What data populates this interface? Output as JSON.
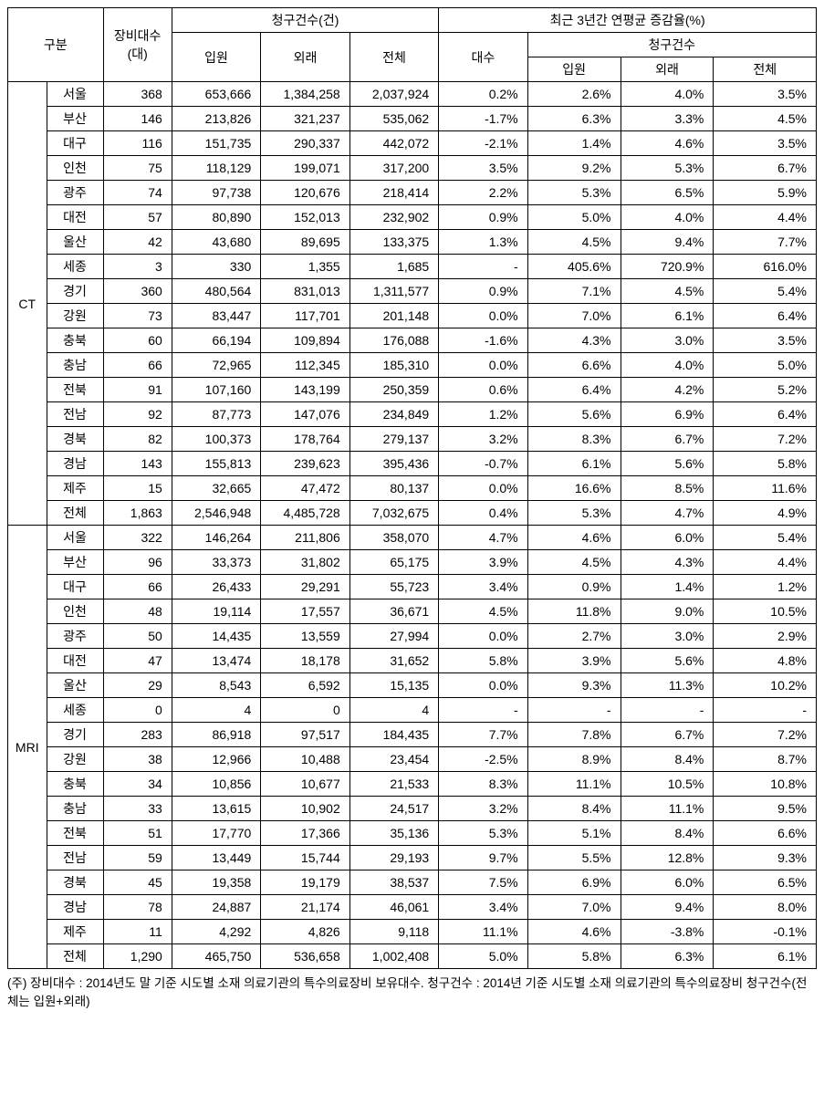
{
  "headers": {
    "gubun": "구분",
    "equip": "장비대수\n(대)",
    "claims": "청구건수(건)",
    "in": "입원",
    "out": "외래",
    "total": "전체",
    "growth": "최근 3년간 연평균 증감율(%)",
    "g_equip": "대수",
    "g_claims": "청구건수"
  },
  "groups": [
    "CT",
    "MRI"
  ],
  "rows": {
    "CT": [
      {
        "region": "서울",
        "equip": "368",
        "in": "653,666",
        "out": "1,384,258",
        "total": "2,037,924",
        "gd": "0.2%",
        "gi": "2.6%",
        "go": "4.0%",
        "gt": "3.5%"
      },
      {
        "region": "부산",
        "equip": "146",
        "in": "213,826",
        "out": "321,237",
        "total": "535,062",
        "gd": "-1.7%",
        "gi": "6.3%",
        "go": "3.3%",
        "gt": "4.5%"
      },
      {
        "region": "대구",
        "equip": "116",
        "in": "151,735",
        "out": "290,337",
        "total": "442,072",
        "gd": "-2.1%",
        "gi": "1.4%",
        "go": "4.6%",
        "gt": "3.5%"
      },
      {
        "region": "인천",
        "equip": "75",
        "in": "118,129",
        "out": "199,071",
        "total": "317,200",
        "gd": "3.5%",
        "gi": "9.2%",
        "go": "5.3%",
        "gt": "6.7%"
      },
      {
        "region": "광주",
        "equip": "74",
        "in": "97,738",
        "out": "120,676",
        "total": "218,414",
        "gd": "2.2%",
        "gi": "5.3%",
        "go": "6.5%",
        "gt": "5.9%"
      },
      {
        "region": "대전",
        "equip": "57",
        "in": "80,890",
        "out": "152,013",
        "total": "232,902",
        "gd": "0.9%",
        "gi": "5.0%",
        "go": "4.0%",
        "gt": "4.4%"
      },
      {
        "region": "울산",
        "equip": "42",
        "in": "43,680",
        "out": "89,695",
        "total": "133,375",
        "gd": "1.3%",
        "gi": "4.5%",
        "go": "9.4%",
        "gt": "7.7%"
      },
      {
        "region": "세종",
        "equip": "3",
        "in": "330",
        "out": "1,355",
        "total": "1,685",
        "gd": "-",
        "gi": "405.6%",
        "go": "720.9%",
        "gt": "616.0%"
      },
      {
        "region": "경기",
        "equip": "360",
        "in": "480,564",
        "out": "831,013",
        "total": "1,311,577",
        "gd": "0.9%",
        "gi": "7.1%",
        "go": "4.5%",
        "gt": "5.4%"
      },
      {
        "region": "강원",
        "equip": "73",
        "in": "83,447",
        "out": "117,701",
        "total": "201,148",
        "gd": "0.0%",
        "gi": "7.0%",
        "go": "6.1%",
        "gt": "6.4%"
      },
      {
        "region": "충북",
        "equip": "60",
        "in": "66,194",
        "out": "109,894",
        "total": "176,088",
        "gd": "-1.6%",
        "gi": "4.3%",
        "go": "3.0%",
        "gt": "3.5%"
      },
      {
        "region": "충남",
        "equip": "66",
        "in": "72,965",
        "out": "112,345",
        "total": "185,310",
        "gd": "0.0%",
        "gi": "6.6%",
        "go": "4.0%",
        "gt": "5.0%"
      },
      {
        "region": "전북",
        "equip": "91",
        "in": "107,160",
        "out": "143,199",
        "total": "250,359",
        "gd": "0.6%",
        "gi": "6.4%",
        "go": "4.2%",
        "gt": "5.2%"
      },
      {
        "region": "전남",
        "equip": "92",
        "in": "87,773",
        "out": "147,076",
        "total": "234,849",
        "gd": "1.2%",
        "gi": "5.6%",
        "go": "6.9%",
        "gt": "6.4%"
      },
      {
        "region": "경북",
        "equip": "82",
        "in": "100,373",
        "out": "178,764",
        "total": "279,137",
        "gd": "3.2%",
        "gi": "8.3%",
        "go": "6.7%",
        "gt": "7.2%"
      },
      {
        "region": "경남",
        "equip": "143",
        "in": "155,813",
        "out": "239,623",
        "total": "395,436",
        "gd": "-0.7%",
        "gi": "6.1%",
        "go": "5.6%",
        "gt": "5.8%"
      },
      {
        "region": "제주",
        "equip": "15",
        "in": "32,665",
        "out": "47,472",
        "total": "80,137",
        "gd": "0.0%",
        "gi": "16.6%",
        "go": "8.5%",
        "gt": "11.6%"
      },
      {
        "region": "전체",
        "equip": "1,863",
        "in": "2,546,948",
        "out": "4,485,728",
        "total": "7,032,675",
        "gd": "0.4%",
        "gi": "5.3%",
        "go": "4.7%",
        "gt": "4.9%"
      }
    ],
    "MRI": [
      {
        "region": "서울",
        "equip": "322",
        "in": "146,264",
        "out": "211,806",
        "total": "358,070",
        "gd": "4.7%",
        "gi": "4.6%",
        "go": "6.0%",
        "gt": "5.4%"
      },
      {
        "region": "부산",
        "equip": "96",
        "in": "33,373",
        "out": "31,802",
        "total": "65,175",
        "gd": "3.9%",
        "gi": "4.5%",
        "go": "4.3%",
        "gt": "4.4%"
      },
      {
        "region": "대구",
        "equip": "66",
        "in": "26,433",
        "out": "29,291",
        "total": "55,723",
        "gd": "3.4%",
        "gi": "0.9%",
        "go": "1.4%",
        "gt": "1.2%"
      },
      {
        "region": "인천",
        "equip": "48",
        "in": "19,114",
        "out": "17,557",
        "total": "36,671",
        "gd": "4.5%",
        "gi": "11.8%",
        "go": "9.0%",
        "gt": "10.5%"
      },
      {
        "region": "광주",
        "equip": "50",
        "in": "14,435",
        "out": "13,559",
        "total": "27,994",
        "gd": "0.0%",
        "gi": "2.7%",
        "go": "3.0%",
        "gt": "2.9%"
      },
      {
        "region": "대전",
        "equip": "47",
        "in": "13,474",
        "out": "18,178",
        "total": "31,652",
        "gd": "5.8%",
        "gi": "3.9%",
        "go": "5.6%",
        "gt": "4.8%"
      },
      {
        "region": "울산",
        "equip": "29",
        "in": "8,543",
        "out": "6,592",
        "total": "15,135",
        "gd": "0.0%",
        "gi": "9.3%",
        "go": "11.3%",
        "gt": "10.2%"
      },
      {
        "region": "세종",
        "equip": "0",
        "in": "4",
        "out": "0",
        "total": "4",
        "gd": "-",
        "gi": "-",
        "go": "-",
        "gt": "-"
      },
      {
        "region": "경기",
        "equip": "283",
        "in": "86,918",
        "out": "97,517",
        "total": "184,435",
        "gd": "7.7%",
        "gi": "7.8%",
        "go": "6.7%",
        "gt": "7.2%"
      },
      {
        "region": "강원",
        "equip": "38",
        "in": "12,966",
        "out": "10,488",
        "total": "23,454",
        "gd": "-2.5%",
        "gi": "8.9%",
        "go": "8.4%",
        "gt": "8.7%"
      },
      {
        "region": "충북",
        "equip": "34",
        "in": "10,856",
        "out": "10,677",
        "total": "21,533",
        "gd": "8.3%",
        "gi": "11.1%",
        "go": "10.5%",
        "gt": "10.8%"
      },
      {
        "region": "충남",
        "equip": "33",
        "in": "13,615",
        "out": "10,902",
        "total": "24,517",
        "gd": "3.2%",
        "gi": "8.4%",
        "go": "11.1%",
        "gt": "9.5%"
      },
      {
        "region": "전북",
        "equip": "51",
        "in": "17,770",
        "out": "17,366",
        "total": "35,136",
        "gd": "5.3%",
        "gi": "5.1%",
        "go": "8.4%",
        "gt": "6.6%"
      },
      {
        "region": "전남",
        "equip": "59",
        "in": "13,449",
        "out": "15,744",
        "total": "29,193",
        "gd": "9.7%",
        "gi": "5.5%",
        "go": "12.8%",
        "gt": "9.3%"
      },
      {
        "region": "경북",
        "equip": "45",
        "in": "19,358",
        "out": "19,179",
        "total": "38,537",
        "gd": "7.5%",
        "gi": "6.9%",
        "go": "6.0%",
        "gt": "6.5%"
      },
      {
        "region": "경남",
        "equip": "78",
        "in": "24,887",
        "out": "21,174",
        "total": "46,061",
        "gd": "3.4%",
        "gi": "7.0%",
        "go": "9.4%",
        "gt": "8.0%"
      },
      {
        "region": "제주",
        "equip": "11",
        "in": "4,292",
        "out": "4,826",
        "total": "9,118",
        "gd": "11.1%",
        "gi": "4.6%",
        "go": "-3.8%",
        "gt": "-0.1%"
      },
      {
        "region": "전체",
        "equip": "1,290",
        "in": "465,750",
        "out": "536,658",
        "total": "1,002,408",
        "gd": "5.0%",
        "gi": "5.8%",
        "go": "6.3%",
        "gt": "6.1%"
      }
    ]
  },
  "footnote": "(주) 장비대수 : 2014년도 말 기준 시도별 소재 의료기관의 특수의료장비 보유대수. 청구건수 : 2014년 기준 시도별 소재 의료기관의 특수의료장비 청구건수(전체는 입원+외래)"
}
